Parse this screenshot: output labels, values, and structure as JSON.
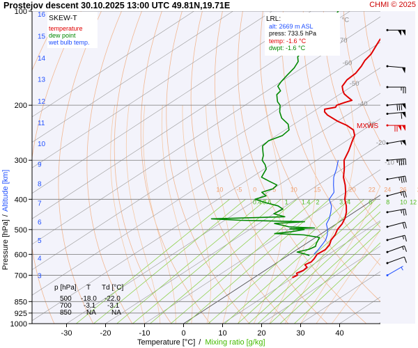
{
  "header": {
    "title": "Prostejov   descent   30.10.2025 13:00 UTC   49.81N,19.71E",
    "credit": "CHMI © 2025"
  },
  "legend": {
    "title": "SKEW-T",
    "items": [
      {
        "label": "temperature",
        "color": "#e00000"
      },
      {
        "label": "dew point",
        "color": "#008800"
      },
      {
        "label": "wet bulb temp.",
        "color": "#1f4fff"
      }
    ]
  },
  "lrl": {
    "title": "LRL:",
    "alt": "alt: 2669 m ASL",
    "press": "press: 733.5 hPa",
    "temp": "temp: -1.6 °C",
    "dwpt": "dwpt: -1.6 °C",
    "colors": {
      "alt": "#1f4fff",
      "press": "#000000",
      "temp": "#e00000",
      "dwpt": "#008800"
    }
  },
  "table": {
    "headers": [
      "p [hPa]",
      "T",
      "Td [°C]"
    ],
    "rows": [
      [
        "500",
        "-18.0",
        "-22.0"
      ],
      [
        "700",
        "-3.1",
        "-3.1"
      ],
      [
        "850",
        "NA",
        "NA"
      ]
    ]
  },
  "mxws_label": "MXWS",
  "chart_data": {
    "type": "line",
    "title": "Prostejov   descent   30.10.2025 13:00 UTC   49.81N,19.71E",
    "xlabel": "Temperature [°C]",
    "xlabel_sep": "/",
    "xlabel2": "Mixing ratio [g/kg]",
    "ylabel": "Pressure [hPa]",
    "ylabel_sep": "/",
    "ylabel2": "Altitude [km]",
    "xlim": [
      -38,
      50
    ],
    "ylim": [
      1000,
      100
    ],
    "y_scale": "log",
    "x_ticks": [
      -30,
      -20,
      -10,
      0,
      10,
      20,
      30,
      40
    ],
    "pressure_ticks": [
      100,
      200,
      300,
      400,
      500,
      600,
      700,
      850,
      925,
      1000
    ],
    "altitude_ticks": [
      {
        "km": "16",
        "p": 102
      },
      {
        "km": "15",
        "p": 120
      },
      {
        "km": "14",
        "p": 141
      },
      {
        "km": "13",
        "p": 165
      },
      {
        "km": "12",
        "p": 194
      },
      {
        "km": "11",
        "p": 227
      },
      {
        "km": "10",
        "p": 265
      },
      {
        "km": "9",
        "p": 308
      },
      {
        "km": "8",
        "p": 356
      },
      {
        "km": "7",
        "p": 411
      },
      {
        "km": "6",
        "p": 472
      },
      {
        "km": "5",
        "p": 540
      },
      {
        "km": "4",
        "p": 616
      },
      {
        "km": "3",
        "p": 701
      }
    ],
    "isotherm_labels": [
      {
        "label": "-80 °C",
        "t": -80,
        "p": 110
      },
      {
        "label": "-70",
        "t": -70,
        "p": 128
      },
      {
        "label": "-60",
        "t": -60,
        "p": 151
      },
      {
        "label": "-50",
        "t": -50,
        "p": 176
      },
      {
        "label": "-40",
        "t": -40,
        "p": 204
      },
      {
        "label": "-30",
        "t": -30,
        "p": 237
      },
      {
        "label": "-20",
        "t": -20,
        "p": 272
      },
      {
        "label": "-10 °C",
        "t": -10,
        "p": 315
      }
    ],
    "theta_labels_upper": [
      {
        "label": "5",
        "x": -22,
        "p": 191
      },
      {
        "label": "10",
        "x": -17,
        "p": 191
      },
      {
        "label": "15",
        "x": -12,
        "p": 191
      },
      {
        "label": "20",
        "x": -7,
        "p": 191
      },
      {
        "label": "24",
        "x": 0.5,
        "p": 191
      },
      {
        "label": "28",
        "x": 6.5,
        "p": 191
      },
      {
        "label": "30",
        "x": 12,
        "p": 191
      },
      {
        "label": "32",
        "x": 17,
        "p": 191
      },
      {
        "label": "34",
        "x": 21.5,
        "p": 191
      }
    ],
    "theta_labels_lower": [
      {
        "label": "10",
        "x": -42,
        "p": 382
      },
      {
        "label": "-5",
        "x": -37,
        "p": 382
      },
      {
        "label": "0",
        "x": -33,
        "p": 382
      },
      {
        "label": "5",
        "x": -28,
        "p": 382
      },
      {
        "label": "10",
        "x": -23,
        "p": 382
      },
      {
        "label": "15",
        "x": -17,
        "p": 382
      },
      {
        "label": "20",
        "x": -8,
        "p": 382
      },
      {
        "label": "22",
        "x": -3,
        "p": 382
      },
      {
        "label": "24",
        "x": 1,
        "p": 382
      },
      {
        "label": "26",
        "x": 5,
        "p": 382
      },
      {
        "label": "28",
        "x": 9.5,
        "p": 382
      },
      {
        "label": "30",
        "x": 13.5,
        "p": 382
      },
      {
        "label": "32",
        "x": 17,
        "p": 382
      },
      {
        "label": "34",
        "x": 20,
        "p": 382
      }
    ],
    "mixing_ratio_labels": [
      "0.4",
      "0.6",
      "1",
      "1.4",
      "2",
      "3",
      "4",
      "6",
      "8",
      "10",
      "12",
      "14",
      "17",
      "20",
      "25"
    ],
    "mixing_ratio_label_x": [
      -28.5,
      -26,
      -21,
      -16,
      -13,
      -7,
      -5,
      0.5,
      5,
      9,
      11.5,
      14,
      17,
      19.5,
      24
    ],
    "mixing_ratio_label_p": 411,
    "series": [
      {
        "name": "temperature",
        "color": "#e00000",
        "points": [
          [
            712,
            9.8
          ],
          [
            700,
            10.2
          ],
          [
            690,
            9.2
          ],
          [
            675,
            9.8
          ],
          [
            660,
            9.5
          ],
          [
            648,
            8.0
          ],
          [
            635,
            8.5
          ],
          [
            620,
            8.0
          ],
          [
            600,
            7.0
          ],
          [
            580,
            7.3
          ],
          [
            560,
            6.5
          ],
          [
            540,
            5.0
          ],
          [
            520,
            4.0
          ],
          [
            500,
            2.5
          ],
          [
            480,
            1.5
          ],
          [
            460,
            0.0
          ],
          [
            440,
            -2.0
          ],
          [
            420,
            -4.5
          ],
          [
            400,
            -7.5
          ],
          [
            380,
            -10.0
          ],
          [
            360,
            -13.0
          ],
          [
            340,
            -16.5
          ],
          [
            320,
            -19.5
          ],
          [
            300,
            -23.0
          ],
          [
            280,
            -25.5
          ],
          [
            260,
            -28.5
          ],
          [
            250,
            -30.0
          ],
          [
            240,
            -32.5
          ],
          [
            232,
            -36.0
          ],
          [
            225,
            -40.0
          ],
          [
            215,
            -45.0
          ],
          [
            210,
            -47.0
          ],
          [
            206,
            -48.0
          ],
          [
            203,
            -46.0
          ],
          [
            200,
            -46.5
          ],
          [
            196,
            -45.5
          ],
          [
            193,
            -44.5
          ],
          [
            190,
            -46.0
          ],
          [
            187,
            -47.5
          ],
          [
            184,
            -49.0
          ],
          [
            180,
            -50.5
          ],
          [
            174,
            -52.5
          ],
          [
            166,
            -53.8
          ],
          [
            158,
            -54.2
          ],
          [
            150,
            -55.5
          ],
          [
            144,
            -56.8
          ],
          [
            137,
            -57.8
          ],
          [
            130,
            -59.5
          ],
          [
            124,
            -61.0
          ],
          [
            118,
            -62.2
          ],
          [
            112,
            -63.2
          ],
          [
            107,
            -64.0
          ],
          [
            103,
            -64.5
          ],
          [
            100,
            -64.7
          ]
        ]
      },
      {
        "name": "dew point",
        "color": "#008800",
        "points": [
          [
            605,
            5.5
          ],
          [
            598,
            3.5
          ],
          [
            590,
            1.0
          ],
          [
            578,
            3.0
          ],
          [
            566,
            3.5
          ],
          [
            553,
            2.5
          ],
          [
            545,
            2.0
          ],
          [
            530,
            1.0
          ],
          [
            520,
            -4.0
          ],
          [
            515,
            -12.0
          ],
          [
            508,
            -8.5
          ],
          [
            500,
            -6.0
          ],
          [
            497,
            -10.0
          ],
          [
            494,
            -4.0
          ],
          [
            490,
            -11.0
          ],
          [
            485,
            -13.0
          ],
          [
            478,
            -16.0
          ],
          [
            472,
            -9.0
          ],
          [
            467,
            -26.0
          ],
          [
            462,
            -34.0
          ],
          [
            455,
            -16.0
          ],
          [
            445,
            -20.0
          ],
          [
            430,
            -19.5
          ],
          [
            420,
            -22.0
          ],
          [
            410,
            -26.5
          ],
          [
            400,
            -30.5
          ],
          [
            390,
            -29.0
          ],
          [
            380,
            -31.5
          ],
          [
            370,
            -30.0
          ],
          [
            360,
            -30.5
          ],
          [
            350,
            -34.0
          ],
          [
            340,
            -37.5
          ],
          [
            330,
            -38.5
          ],
          [
            320,
            -39.5
          ],
          [
            310,
            -41.5
          ],
          [
            300,
            -44.0
          ],
          [
            290,
            -45.5
          ],
          [
            280,
            -47.5
          ],
          [
            270,
            -49.5
          ],
          [
            260,
            -50.0
          ],
          [
            250,
            -48.5
          ],
          [
            240,
            -49.0
          ],
          [
            230,
            -51.5
          ],
          [
            220,
            -55.5
          ],
          [
            210,
            -58.5
          ],
          [
            200,
            -61.0
          ],
          [
            195,
            -63.0
          ],
          [
            190,
            -64.5
          ],
          [
            185,
            -66.0
          ],
          [
            180,
            -66.5
          ],
          [
            174,
            -69.0
          ],
          [
            168,
            -70.0
          ],
          [
            160,
            -71.0
          ],
          [
            152,
            -72.0
          ],
          [
            145,
            -73.5
          ],
          [
            140,
            -75.5
          ],
          [
            132,
            -76.8
          ],
          [
            125,
            -78.0
          ],
          [
            118,
            -78.5
          ],
          [
            112,
            -80.0
          ],
          [
            106,
            -81.5
          ],
          [
            100,
            -83.0
          ]
        ]
      },
      {
        "name": "wet bulb temp.",
        "color": "#1f4fff",
        "points": [
          [
            600,
            6.2
          ],
          [
            580,
            5.5
          ],
          [
            560,
            4.6
          ],
          [
            540,
            3.6
          ],
          [
            520,
            2.0
          ],
          [
            500,
            0.0
          ],
          [
            480,
            -2.5
          ],
          [
            460,
            -4.0
          ],
          [
            440,
            -6.0
          ],
          [
            420,
            -8.3
          ],
          [
            400,
            -11.5
          ],
          [
            380,
            -13.0
          ],
          [
            360,
            -16.0
          ],
          [
            340,
            -19.0
          ],
          [
            320,
            -21.5
          ],
          [
            300,
            -24.5
          ]
        ]
      }
    ],
    "winds": [
      {
        "p": 115,
        "dir": 270,
        "kt": 100
      },
      {
        "p": 150,
        "dir": 275,
        "kt": 50
      },
      {
        "p": 175,
        "dir": 270,
        "kt": 25
      },
      {
        "p": 200,
        "dir": 265,
        "kt": 80
      },
      {
        "p": 213,
        "dir": 265,
        "kt": 60
      },
      {
        "p": 232,
        "dir": 270,
        "kt": 120
      },
      {
        "p": 265,
        "dir": 260,
        "kt": 55
      },
      {
        "p": 300,
        "dir": 265,
        "kt": 45
      },
      {
        "p": 345,
        "dir": 260,
        "kt": 35
      },
      {
        "p": 390,
        "dir": 255,
        "kt": 25
      },
      {
        "p": 440,
        "dir": 260,
        "kt": 25
      },
      {
        "p": 490,
        "dir": 255,
        "kt": 20
      },
      {
        "p": 540,
        "dir": 255,
        "kt": 15
      },
      {
        "p": 590,
        "dir": 250,
        "kt": 15
      },
      {
        "p": 640,
        "dir": 250,
        "kt": 10
      },
      {
        "p": 700,
        "dir": 240,
        "kt": 5
      }
    ],
    "mxws_p": 232,
    "grid": true
  }
}
